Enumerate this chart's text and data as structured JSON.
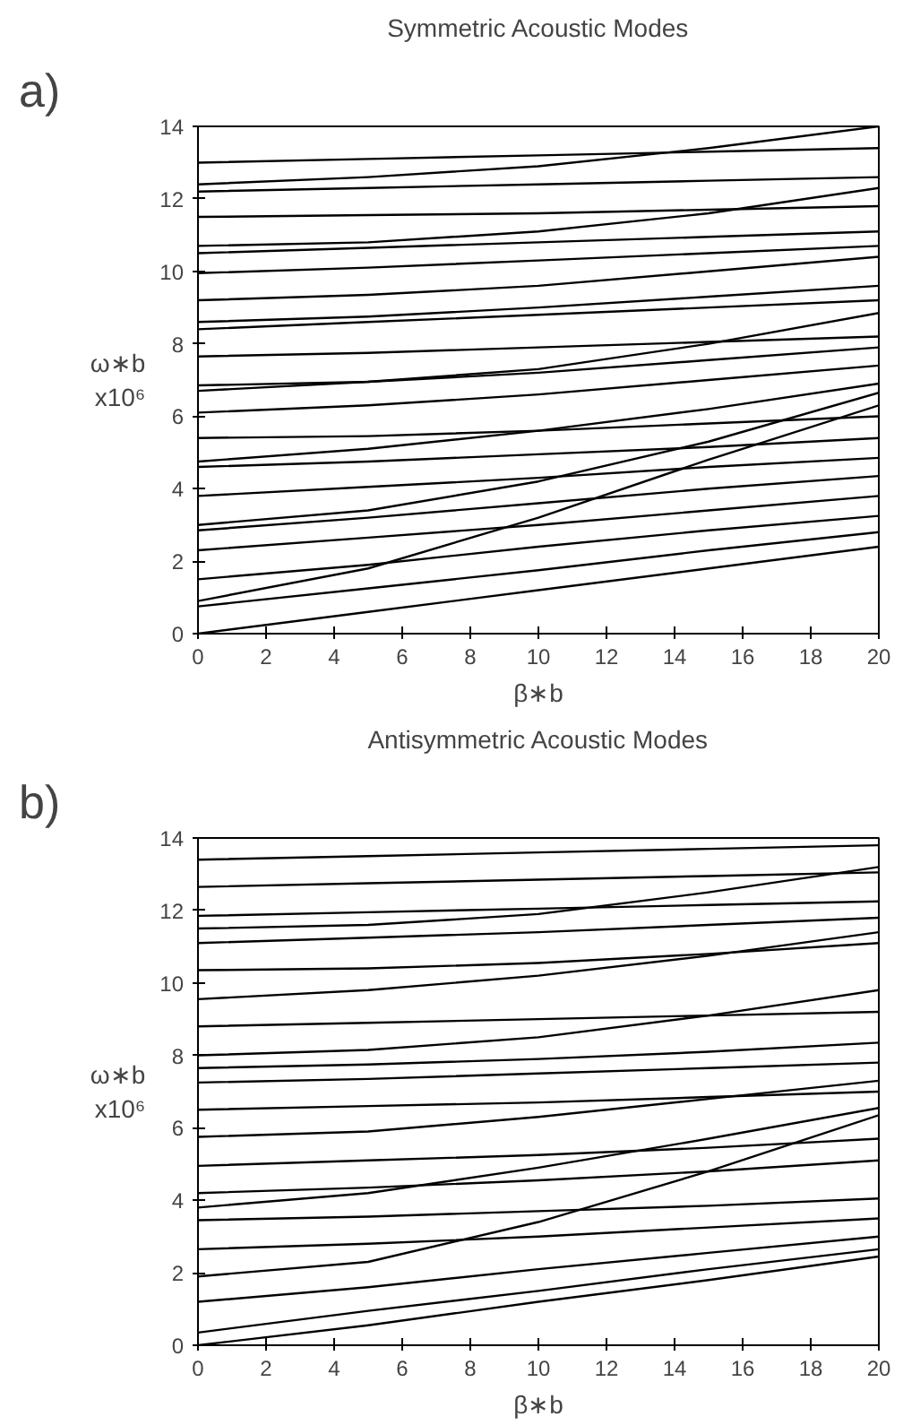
{
  "chart_data": [
    {
      "type": "line",
      "title": "Symmetric Acoustic Modes",
      "xlabel": "β∗b",
      "ylabel": "ω∗b\nx10⁶",
      "annotations": [
        "a)"
      ],
      "x": [
        0,
        5,
        10,
        15,
        20
      ],
      "xlim": [
        0,
        20
      ],
      "ylim": [
        0,
        14
      ],
      "xticks": [
        0,
        2,
        4,
        6,
        8,
        10,
        12,
        14,
        16,
        18,
        20
      ],
      "yticks": [
        0,
        2,
        4,
        6,
        8,
        10,
        12,
        14
      ],
      "series": [
        {
          "color": "#000000",
          "values": [
            0,
            0.6,
            1.2,
            1.8,
            2.4
          ]
        },
        {
          "color": "#000000",
          "values": [
            0.75,
            1.25,
            1.75,
            2.3,
            2.8
          ]
        },
        {
          "color": "#000000",
          "values": [
            0.9,
            1.8,
            3.2,
            4.8,
            6.3
          ]
        },
        {
          "color": "#000000",
          "values": [
            1.5,
            1.9,
            2.4,
            2.85,
            3.25
          ]
        },
        {
          "color": "#000000",
          "values": [
            2.3,
            2.65,
            3.0,
            3.4,
            3.8
          ]
        },
        {
          "color": "#000000",
          "values": [
            2.85,
            3.2,
            3.6,
            4.0,
            4.35
          ]
        },
        {
          "color": "#000000",
          "values": [
            3.0,
            3.4,
            4.2,
            5.3,
            6.65
          ]
        },
        {
          "color": "#000000",
          "values": [
            3.8,
            4.05,
            4.3,
            4.6,
            4.85
          ]
        },
        {
          "color": "#000000",
          "values": [
            4.6,
            4.75,
            4.95,
            5.15,
            5.4
          ]
        },
        {
          "color": "#000000",
          "values": [
            4.75,
            5.1,
            5.6,
            6.2,
            6.9
          ]
        },
        {
          "color": "#000000",
          "values": [
            5.4,
            5.45,
            5.6,
            5.8,
            6.0
          ]
        },
        {
          "color": "#000000",
          "values": [
            6.1,
            6.3,
            6.6,
            7.0,
            7.4
          ]
        },
        {
          "color": "#000000",
          "values": [
            6.7,
            6.95,
            7.2,
            7.55,
            7.9
          ]
        },
        {
          "color": "#000000",
          "values": [
            6.85,
            6.95,
            7.3,
            8.0,
            8.85
          ]
        },
        {
          "color": "#000000",
          "values": [
            7.65,
            7.75,
            7.9,
            8.05,
            8.2
          ]
        },
        {
          "color": "#000000",
          "values": [
            8.4,
            8.6,
            8.8,
            9.0,
            9.2
          ]
        },
        {
          "color": "#000000",
          "values": [
            8.6,
            8.75,
            9.0,
            9.3,
            9.6
          ]
        },
        {
          "color": "#000000",
          "values": [
            9.2,
            9.35,
            9.6,
            10.0,
            10.4
          ]
        },
        {
          "color": "#000000",
          "values": [
            9.95,
            10.1,
            10.3,
            10.5,
            10.7
          ]
        },
        {
          "color": "#000000",
          "values": [
            10.5,
            10.65,
            10.8,
            10.95,
            11.1
          ]
        },
        {
          "color": "#000000",
          "values": [
            10.7,
            10.8,
            11.1,
            11.6,
            12.3
          ]
        },
        {
          "color": "#000000",
          "values": [
            11.5,
            11.55,
            11.6,
            11.7,
            11.8
          ]
        },
        {
          "color": "#000000",
          "values": [
            12.2,
            12.3,
            12.4,
            12.5,
            12.6
          ]
        },
        {
          "color": "#000000",
          "values": [
            12.4,
            12.6,
            12.9,
            13.4,
            14.0
          ]
        },
        {
          "color": "#000000",
          "values": [
            13.0,
            13.1,
            13.2,
            13.3,
            13.4
          ]
        }
      ]
    },
    {
      "type": "line",
      "title": "Antisymmetric Acoustic Modes",
      "xlabel": "β∗b",
      "ylabel": "ω∗b\nx10⁶",
      "annotations": [
        "b)"
      ],
      "x": [
        0,
        5,
        10,
        15,
        20
      ],
      "xlim": [
        0,
        20
      ],
      "ylim": [
        0,
        14
      ],
      "xticks": [
        0,
        2,
        4,
        6,
        8,
        10,
        12,
        14,
        16,
        18,
        20
      ],
      "yticks": [
        0,
        2,
        4,
        6,
        8,
        10,
        12,
        14
      ],
      "series": [
        {
          "color": "#000000",
          "values": [
            0,
            0.55,
            1.2,
            1.8,
            2.45
          ]
        },
        {
          "color": "#000000",
          "values": [
            0.35,
            0.95,
            1.5,
            2.1,
            2.65
          ]
        },
        {
          "color": "#000000",
          "values": [
            1.2,
            1.6,
            2.1,
            2.55,
            3.0
          ]
        },
        {
          "color": "#000000",
          "values": [
            1.9,
            2.3,
            3.4,
            4.8,
            6.35
          ]
        },
        {
          "color": "#000000",
          "values": [
            2.65,
            2.8,
            3.0,
            3.25,
            3.5
          ]
        },
        {
          "color": "#000000",
          "values": [
            3.45,
            3.55,
            3.7,
            3.85,
            4.05
          ]
        },
        {
          "color": "#000000",
          "values": [
            3.8,
            4.2,
            4.9,
            5.7,
            6.55
          ]
        },
        {
          "color": "#000000",
          "values": [
            4.2,
            4.35,
            4.55,
            4.8,
            5.1
          ]
        },
        {
          "color": "#000000",
          "values": [
            4.95,
            5.1,
            5.25,
            5.45,
            5.7
          ]
        },
        {
          "color": "#000000",
          "values": [
            5.75,
            5.9,
            6.3,
            6.8,
            7.3
          ]
        },
        {
          "color": "#000000",
          "values": [
            6.5,
            6.6,
            6.7,
            6.85,
            7.0
          ]
        },
        {
          "color": "#000000",
          "values": [
            7.25,
            7.35,
            7.5,
            7.65,
            7.8
          ]
        },
        {
          "color": "#000000",
          "values": [
            7.65,
            7.75,
            7.9,
            8.1,
            8.35
          ]
        },
        {
          "color": "#000000",
          "values": [
            8.0,
            8.15,
            8.5,
            9.1,
            9.8
          ]
        },
        {
          "color": "#000000",
          "values": [
            8.8,
            8.9,
            9.0,
            9.1,
            9.2
          ]
        },
        {
          "color": "#000000",
          "values": [
            9.55,
            9.8,
            10.2,
            10.75,
            11.4
          ]
        },
        {
          "color": "#000000",
          "values": [
            10.35,
            10.4,
            10.55,
            10.8,
            11.1
          ]
        },
        {
          "color": "#000000",
          "values": [
            11.1,
            11.25,
            11.4,
            11.6,
            11.8
          ]
        },
        {
          "color": "#000000",
          "values": [
            11.5,
            11.6,
            11.9,
            12.5,
            13.2
          ]
        },
        {
          "color": "#000000",
          "values": [
            11.85,
            11.95,
            12.05,
            12.15,
            12.25
          ]
        },
        {
          "color": "#000000",
          "values": [
            12.65,
            12.75,
            12.85,
            12.95,
            13.05
          ]
        },
        {
          "color": "#000000",
          "values": [
            13.4,
            13.5,
            13.6,
            13.7,
            13.8
          ]
        }
      ]
    }
  ]
}
